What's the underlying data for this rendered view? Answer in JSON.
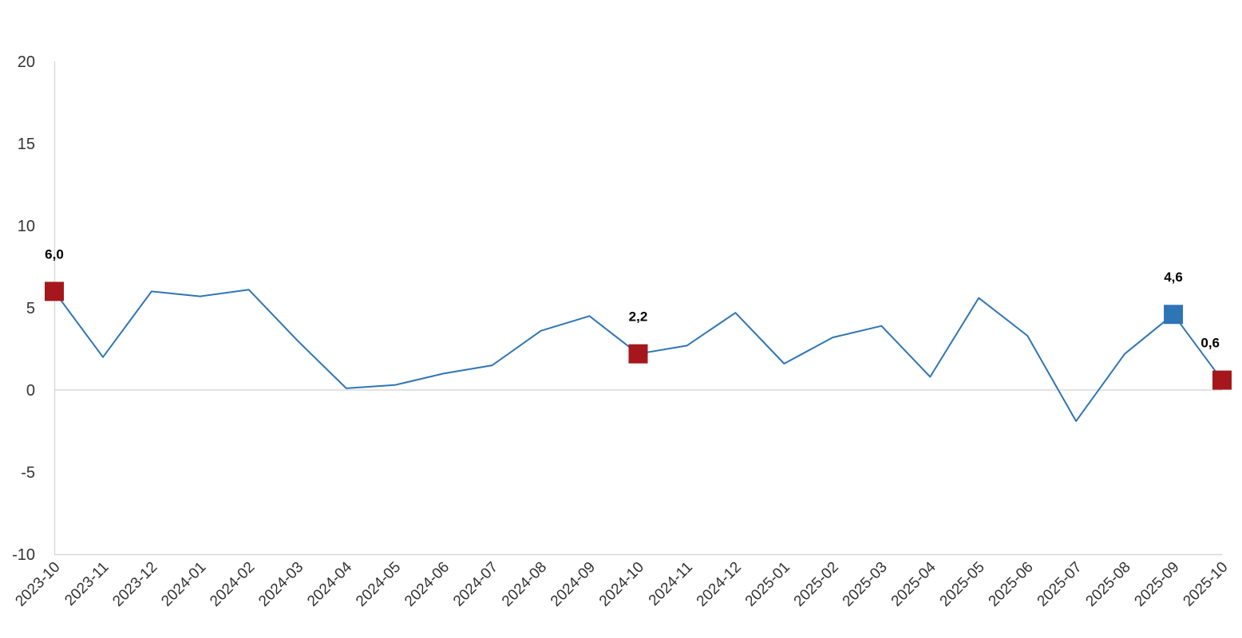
{
  "chart_data": {
    "type": "line",
    "categories": [
      "2023-10",
      "2023-11",
      "2023-12",
      "2024-01",
      "2024-02",
      "2024-03",
      "2024-04",
      "2024-05",
      "2024-06",
      "2024-07",
      "2024-08",
      "2024-09",
      "2024-10",
      "2024-11",
      "2024-12",
      "2025-01",
      "2025-02",
      "2025-03",
      "2025-04",
      "2025-05",
      "2025-06",
      "2025-07",
      "2025-08",
      "2025-09",
      "2025-10"
    ],
    "series": [
      {
        "values": [
          6.0,
          2.0,
          6.0,
          5.7,
          6.1,
          3.0,
          0.1,
          0.3,
          1.0,
          1.5,
          3.6,
          4.5,
          2.2,
          2.7,
          4.7,
          1.6,
          3.2,
          3.9,
          0.8,
          5.6,
          3.3,
          -1.9,
          2.2,
          4.6,
          0.6
        ],
        "color": "#2E75B6"
      }
    ],
    "highlighted_points": [
      {
        "category": "2023-10",
        "value": 6.0,
        "label": "6,0",
        "color": "#A5171C"
      },
      {
        "category": "2024-10",
        "value": 2.2,
        "label": "2,2",
        "color": "#A5171C"
      },
      {
        "category": "2025-09",
        "value": 4.6,
        "label": "4,6",
        "color": "#2E75B6"
      },
      {
        "category": "2025-10",
        "value": 0.6,
        "label": "0,6",
        "color": "#A5171C"
      }
    ],
    "yticks": [
      "20",
      "15",
      "10",
      "5",
      "0",
      "-5",
      "-10"
    ],
    "ytick_values": [
      20,
      15,
      10,
      5,
      0,
      -5,
      -10
    ],
    "ylim": [
      -10,
      20
    ],
    "title": "",
    "xlabel": "",
    "ylabel": "",
    "grid": false,
    "legend": "none",
    "colors": {
      "axis": "#D9D9D9",
      "zero_line": "#D9D9D9"
    }
  }
}
